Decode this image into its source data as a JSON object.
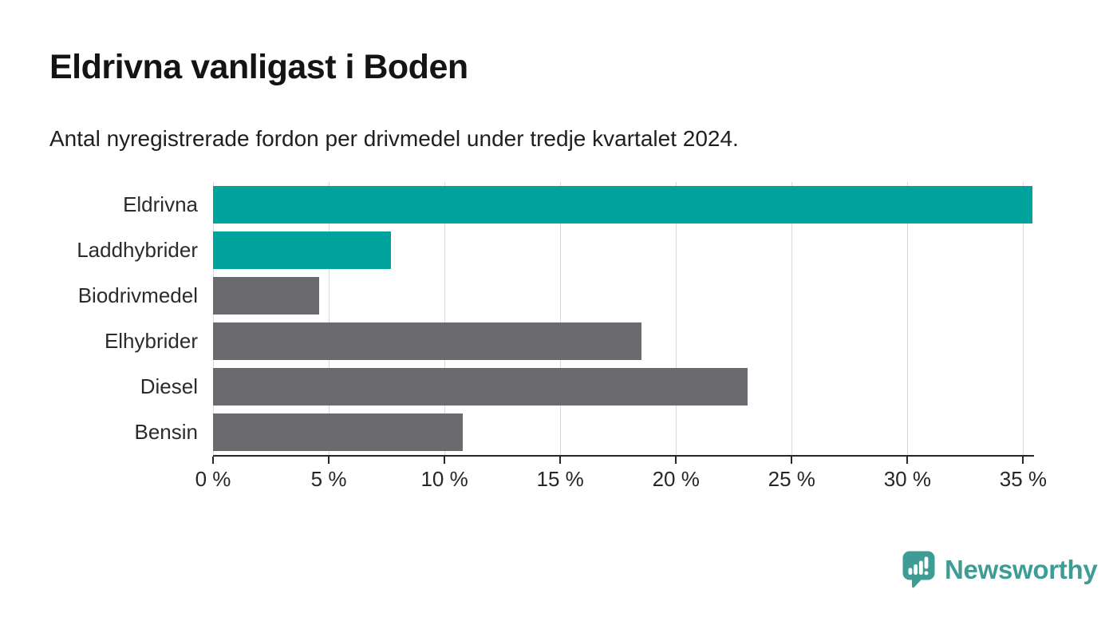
{
  "chart_data": {
    "type": "bar",
    "orientation": "horizontal",
    "title": "Eldrivna vanligast i Boden",
    "subtitle": "Antal nyregistrerade fordon per drivmedel under tredje kvartalet 2024.",
    "categories": [
      "Eldrivna",
      "Laddhybrider",
      "Biodrivmedel",
      "Elhybrider",
      "Diesel",
      "Bensin"
    ],
    "values": [
      35.4,
      7.7,
      4.6,
      18.5,
      23.1,
      10.8
    ],
    "bar_colors": [
      "#00a39b",
      "#00a39b",
      "#6a6a6f",
      "#6a6a6f",
      "#6a6a6f",
      "#6a6a6f"
    ],
    "xlim": [
      0,
      35.4
    ],
    "x_ticks": [
      0,
      5,
      10,
      15,
      20,
      25,
      30,
      35
    ],
    "x_tick_suffix": " %",
    "grid": true,
    "legend_position": "none",
    "xlabel": "",
    "ylabel": ""
  },
  "colors": {
    "accent_teal": "#00a39b",
    "neutral_gray": "#6a6a6f",
    "gridline": "#d9d9d9",
    "axis": "#262626",
    "title_text": "#141414",
    "label_text": "#2b2b2b",
    "logo_teal": "#3f9c95"
  },
  "branding": {
    "logo_text": "Newsworthy",
    "logo_icon": "speech-bubble-bar-chart-icon"
  }
}
